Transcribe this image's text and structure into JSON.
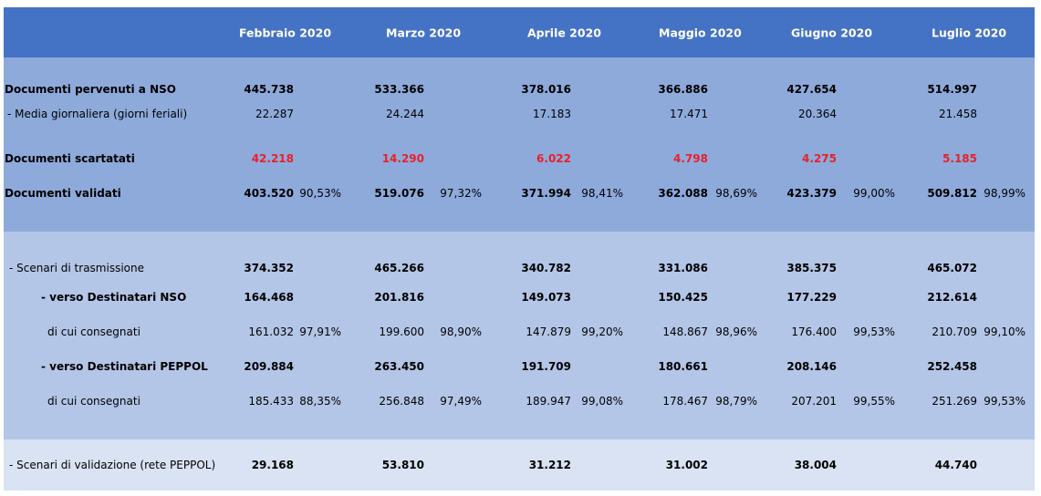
{
  "months": [
    "Febbraio  2020",
    "Marzo  2020",
    "Aprile  2020",
    "Maggio  2020",
    "Giugno  2020",
    "Luglio  2020"
  ],
  "rows": [
    {
      "label": "Documenti  pervenuti a NSO",
      "values": [
        "445.738",
        "533.366",
        "378.016",
        "366.886",
        "427.654",
        "514.997"
      ],
      "pcts": []
    },
    {
      "label": "- Media giornaliera (giorni feriali)",
      "values": [
        "22.287",
        "24.244",
        "17.183",
        "17.471",
        "20.364",
        "21.458"
      ],
      "pcts": []
    },
    {
      "label": "Documenti  scartatati",
      "values": [
        "42.218",
        "14.290",
        "6.022",
        "4.798",
        "4.275",
        "5.185"
      ],
      "pcts": []
    },
    {
      "label": "Documenti  validati",
      "values": [
        "403.520",
        "519.076",
        "371.994",
        "362.088",
        "423.379",
        "509.812"
      ],
      "pcts": [
        "90,53%",
        "97,32%",
        "98,41%",
        "98,69%",
        "99,00%",
        "98,99%"
      ]
    },
    {
      "label": "- Scenari di trasmissione",
      "values": [
        "374.352",
        "465.266",
        "340.782",
        "331.086",
        "385.375",
        "465.072"
      ],
      "pcts": []
    },
    {
      "label": "- verso Destinatari  NSO",
      "values": [
        "164.468",
        "201.816",
        "149.073",
        "150.425",
        "177.229",
        "212.614"
      ],
      "pcts": []
    },
    {
      "label": "di cui consegnati",
      "values": [
        "161.032",
        "199.600",
        "147.879",
        "148.867",
        "176.400",
        "210.709"
      ],
      "pcts": [
        "97,91%",
        "98,90%",
        "99,20%",
        "98,96%",
        "99,53%",
        "99,10%"
      ]
    },
    {
      "label": "- verso Destinatari  PEPPOL",
      "values": [
        "209.884",
        "263.450",
        "191.709",
        "180.661",
        "208.146",
        "252.458"
      ],
      "pcts": []
    },
    {
      "label": "di cui consegnati",
      "values": [
        "185.433",
        "256.848",
        "189.947",
        "178.467",
        "207.201",
        "251.269"
      ],
      "pcts": [
        "88,35%",
        "97,49%",
        "99,08%",
        "98,79%",
        "99,55%",
        "99,53%"
      ]
    },
    {
      "label": "- Scenari di validazione (rete PEPPOL)",
      "values": [
        "29.168",
        "53.810",
        "31.212",
        "31.002",
        "38.004",
        "44.740"
      ],
      "pcts": []
    }
  ],
  "colors": {
    "header": "#4472c4",
    "band1": "#8eaadb",
    "band2": "#b4c6e7",
    "band3": "#dae3f3",
    "scarti": "#e8202a"
  }
}
